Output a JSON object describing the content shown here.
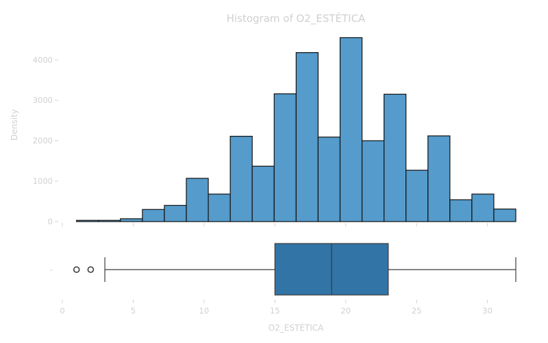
{
  "chart_data": {
    "type": "bar",
    "title": "Histogram of O2_ESTÉTICA",
    "xlabel": "O2_ESTÉTICA",
    "ylabel": "Density",
    "x_ticks": [
      0,
      5,
      10,
      15,
      20,
      25,
      30
    ],
    "y_ticks": [
      0,
      1000,
      2000,
      3000,
      4000
    ],
    "xlim": [
      0,
      32
    ],
    "ylim": [
      0,
      4700
    ],
    "grid": false,
    "bin_edges": [
      1.0,
      2.55,
      4.1,
      5.65,
      7.2,
      8.75,
      10.3,
      11.85,
      13.4,
      14.95,
      16.5,
      18.05,
      19.6,
      21.15,
      22.7,
      24.25,
      25.8,
      27.35,
      28.9,
      30.45,
      32.0
    ],
    "values": [
      30,
      30,
      70,
      300,
      400,
      1070,
      680,
      2110,
      1370,
      3160,
      4180,
      2090,
      4550,
      2000,
      3150,
      1270,
      2120,
      540,
      680,
      310
    ],
    "box": {
      "whisker_low": 3,
      "q1": 15,
      "median": 19,
      "q3": 23,
      "whisker_high": 32,
      "outliers": [
        1,
        2
      ],
      "category_label": "-"
    },
    "colors": {
      "histogram_fill": "#559bcb",
      "box_fill": "#3274a6",
      "edge": "#111111",
      "text": "#d0d0d0"
    }
  }
}
